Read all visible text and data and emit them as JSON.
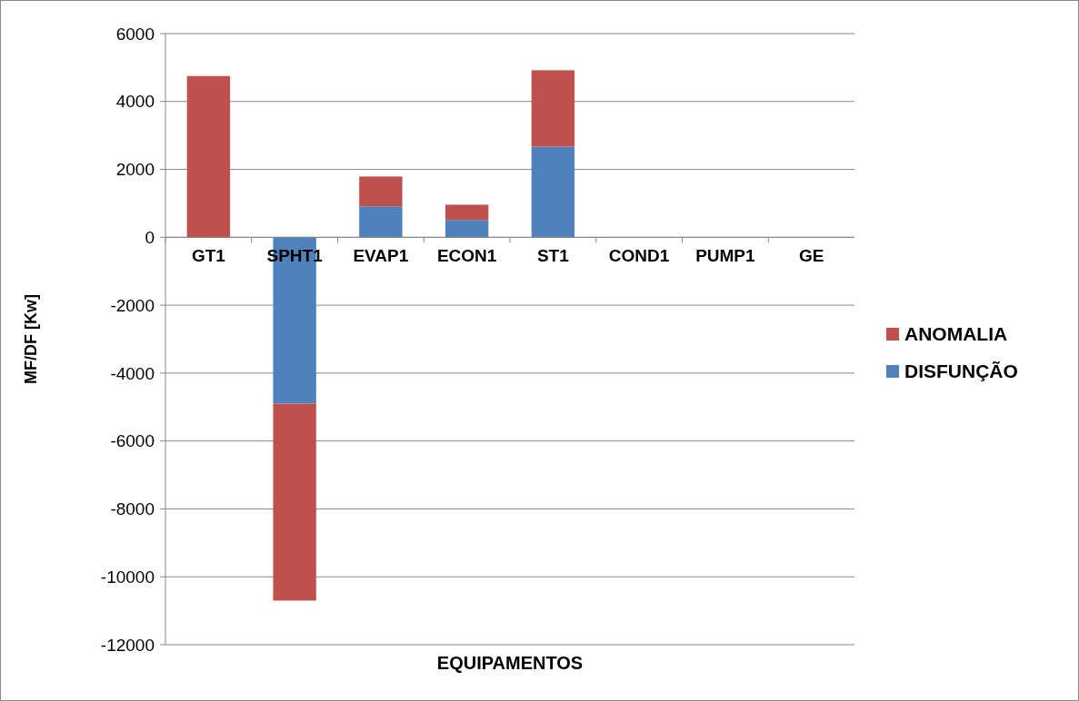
{
  "chart_data": {
    "type": "bar",
    "stacked": true,
    "xlabel": "EQUIPAMENTOS",
    "ylabel": "MF/DF [Kw]",
    "categories": [
      "GT1",
      "SPHT1",
      "EVAP1",
      "ECON1",
      "ST1",
      "COND1",
      "PUMP1",
      "GE"
    ],
    "series": [
      {
        "name": "DISFUNÇÃO",
        "color": "#4f81bd",
        "values": [
          0,
          -4900,
          910,
          510,
          2670,
          0,
          0,
          0
        ]
      },
      {
        "name": "ANOMALIA",
        "color": "#c0504d",
        "values": [
          4750,
          -5800,
          880,
          450,
          2250,
          0,
          0,
          0
        ]
      }
    ],
    "ylim": [
      -12000,
      6000
    ],
    "yticks": [
      -12000,
      -10000,
      -8000,
      -6000,
      -4000,
      -2000,
      0,
      2000,
      4000,
      6000
    ],
    "grid": "y",
    "legend": "right"
  }
}
